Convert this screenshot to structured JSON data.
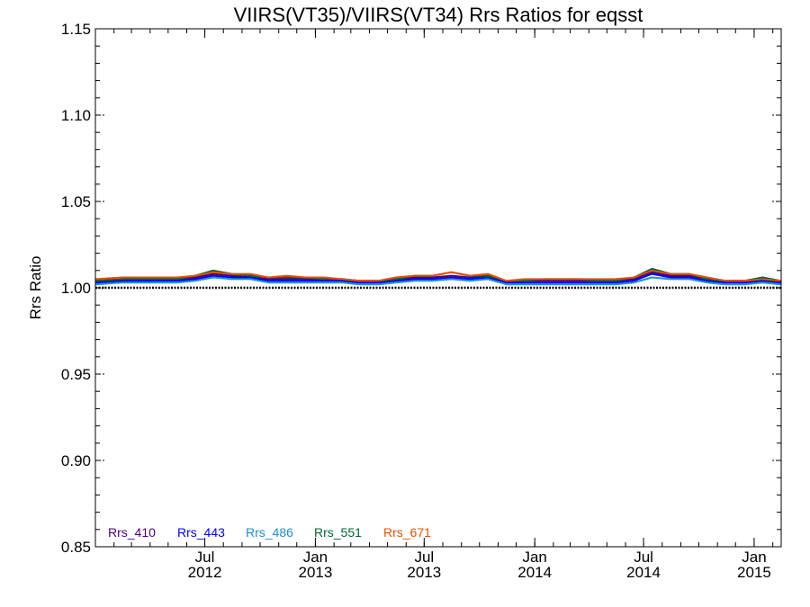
{
  "chart_data": {
    "type": "line",
    "title": "VIIRS(VT35)/VIIRS(VT34)  Rrs Ratios for eqsst",
    "ylabel": "Rrs Ratio",
    "xlabel": "",
    "ylim": [
      0.85,
      1.15
    ],
    "yticks": [
      {
        "value": 0.85,
        "label": "0.85"
      },
      {
        "value": 0.9,
        "label": "0.90"
      },
      {
        "value": 0.95,
        "label": "0.95"
      },
      {
        "value": 1.0,
        "label": "1.00"
      },
      {
        "value": 1.05,
        "label": "1.05"
      },
      {
        "value": 1.1,
        "label": "1.10"
      },
      {
        "value": 1.15,
        "label": "1.15"
      }
    ],
    "xlim": [
      "2012-01-01",
      "2015-02-15"
    ],
    "xticks": [
      {
        "date": "2012-07-01",
        "month": "Jul",
        "year": "2012"
      },
      {
        "date": "2013-01-01",
        "month": "Jan",
        "year": "2013"
      },
      {
        "date": "2013-07-01",
        "month": "Jul",
        "year": "2013"
      },
      {
        "date": "2014-01-01",
        "month": "Jan",
        "year": "2014"
      },
      {
        "date": "2014-07-01",
        "month": "Jul",
        "year": "2014"
      },
      {
        "date": "2015-01-01",
        "month": "Jan",
        "year": "2015"
      }
    ],
    "reference_line": 1.0,
    "x": [
      "2012-01-01",
      "2012-02-15",
      "2012-04-01",
      "2012-05-15",
      "2012-06-15",
      "2012-07-15",
      "2012-08-15",
      "2012-09-15",
      "2012-10-15",
      "2012-11-15",
      "2012-12-15",
      "2013-01-15",
      "2013-02-15",
      "2013-03-15",
      "2013-04-15",
      "2013-05-15",
      "2013-06-15",
      "2013-07-15",
      "2013-08-15",
      "2013-09-15",
      "2013-10-15",
      "2013-11-15",
      "2013-12-15",
      "2014-01-15",
      "2014-02-15",
      "2014-03-15",
      "2014-04-15",
      "2014-05-15",
      "2014-06-15",
      "2014-07-15",
      "2014-08-15",
      "2014-09-15",
      "2014-10-15",
      "2014-11-15",
      "2014-12-15",
      "2015-01-15",
      "2015-02-15"
    ],
    "series": [
      {
        "name": "Rrs_410",
        "color": "#4b0082",
        "values": [
          1.004,
          1.004,
          1.004,
          1.005,
          1.006,
          1.008,
          1.007,
          1.006,
          1.005,
          1.005,
          1.005,
          1.005,
          1.005,
          1.004,
          1.004,
          1.005,
          1.006,
          1.006,
          1.007,
          1.006,
          1.007,
          1.004,
          1.004,
          1.004,
          1.004,
          1.004,
          1.004,
          1.004,
          1.005,
          1.009,
          1.007,
          1.007,
          1.005,
          1.004,
          1.004,
          1.005,
          1.003
        ]
      },
      {
        "name": "Rrs_443",
        "color": "#0000ff",
        "values": [
          1.003,
          1.004,
          1.004,
          1.004,
          1.005,
          1.007,
          1.006,
          1.006,
          1.004,
          1.004,
          1.004,
          1.004,
          1.004,
          1.003,
          1.003,
          1.004,
          1.005,
          1.005,
          1.006,
          1.005,
          1.006,
          1.003,
          1.003,
          1.003,
          1.003,
          1.003,
          1.003,
          1.003,
          1.004,
          1.008,
          1.006,
          1.006,
          1.004,
          1.003,
          1.003,
          1.004,
          1.003
        ]
      },
      {
        "name": "Rrs_486",
        "color": "#1e90d0",
        "values": [
          1.002,
          1.003,
          1.003,
          1.003,
          1.004,
          1.006,
          1.005,
          1.005,
          1.003,
          1.003,
          1.003,
          1.003,
          1.003,
          1.002,
          1.002,
          1.003,
          1.004,
          1.004,
          1.005,
          1.004,
          1.005,
          1.002,
          1.002,
          1.002,
          1.002,
          1.002,
          1.002,
          1.002,
          1.003,
          1.006,
          1.005,
          1.005,
          1.003,
          1.002,
          1.002,
          1.003,
          1.002
        ]
      },
      {
        "name": "Rrs_551",
        "color": "#006633",
        "values": [
          1.004,
          1.005,
          1.005,
          1.005,
          1.007,
          1.01,
          1.008,
          1.007,
          1.006,
          1.006,
          1.006,
          1.005,
          1.005,
          1.004,
          1.004,
          1.005,
          1.007,
          1.007,
          1.009,
          1.007,
          1.007,
          1.004,
          1.004,
          1.005,
          1.005,
          1.005,
          1.004,
          1.004,
          1.006,
          1.011,
          1.008,
          1.008,
          1.005,
          1.004,
          1.004,
          1.006,
          1.004
        ]
      },
      {
        "name": "Rrs_671",
        "color": "#e85000",
        "values": [
          1.005,
          1.006,
          1.006,
          1.006,
          1.007,
          1.009,
          1.008,
          1.008,
          1.006,
          1.007,
          1.006,
          1.006,
          1.005,
          1.004,
          1.004,
          1.006,
          1.007,
          1.007,
          1.009,
          1.007,
          1.008,
          1.004,
          1.005,
          1.005,
          1.005,
          1.005,
          1.005,
          1.005,
          1.006,
          1.01,
          1.008,
          1.008,
          1.006,
          1.004,
          1.004,
          1.005,
          1.004
        ]
      }
    ],
    "legend_placement": "bottom-left"
  }
}
